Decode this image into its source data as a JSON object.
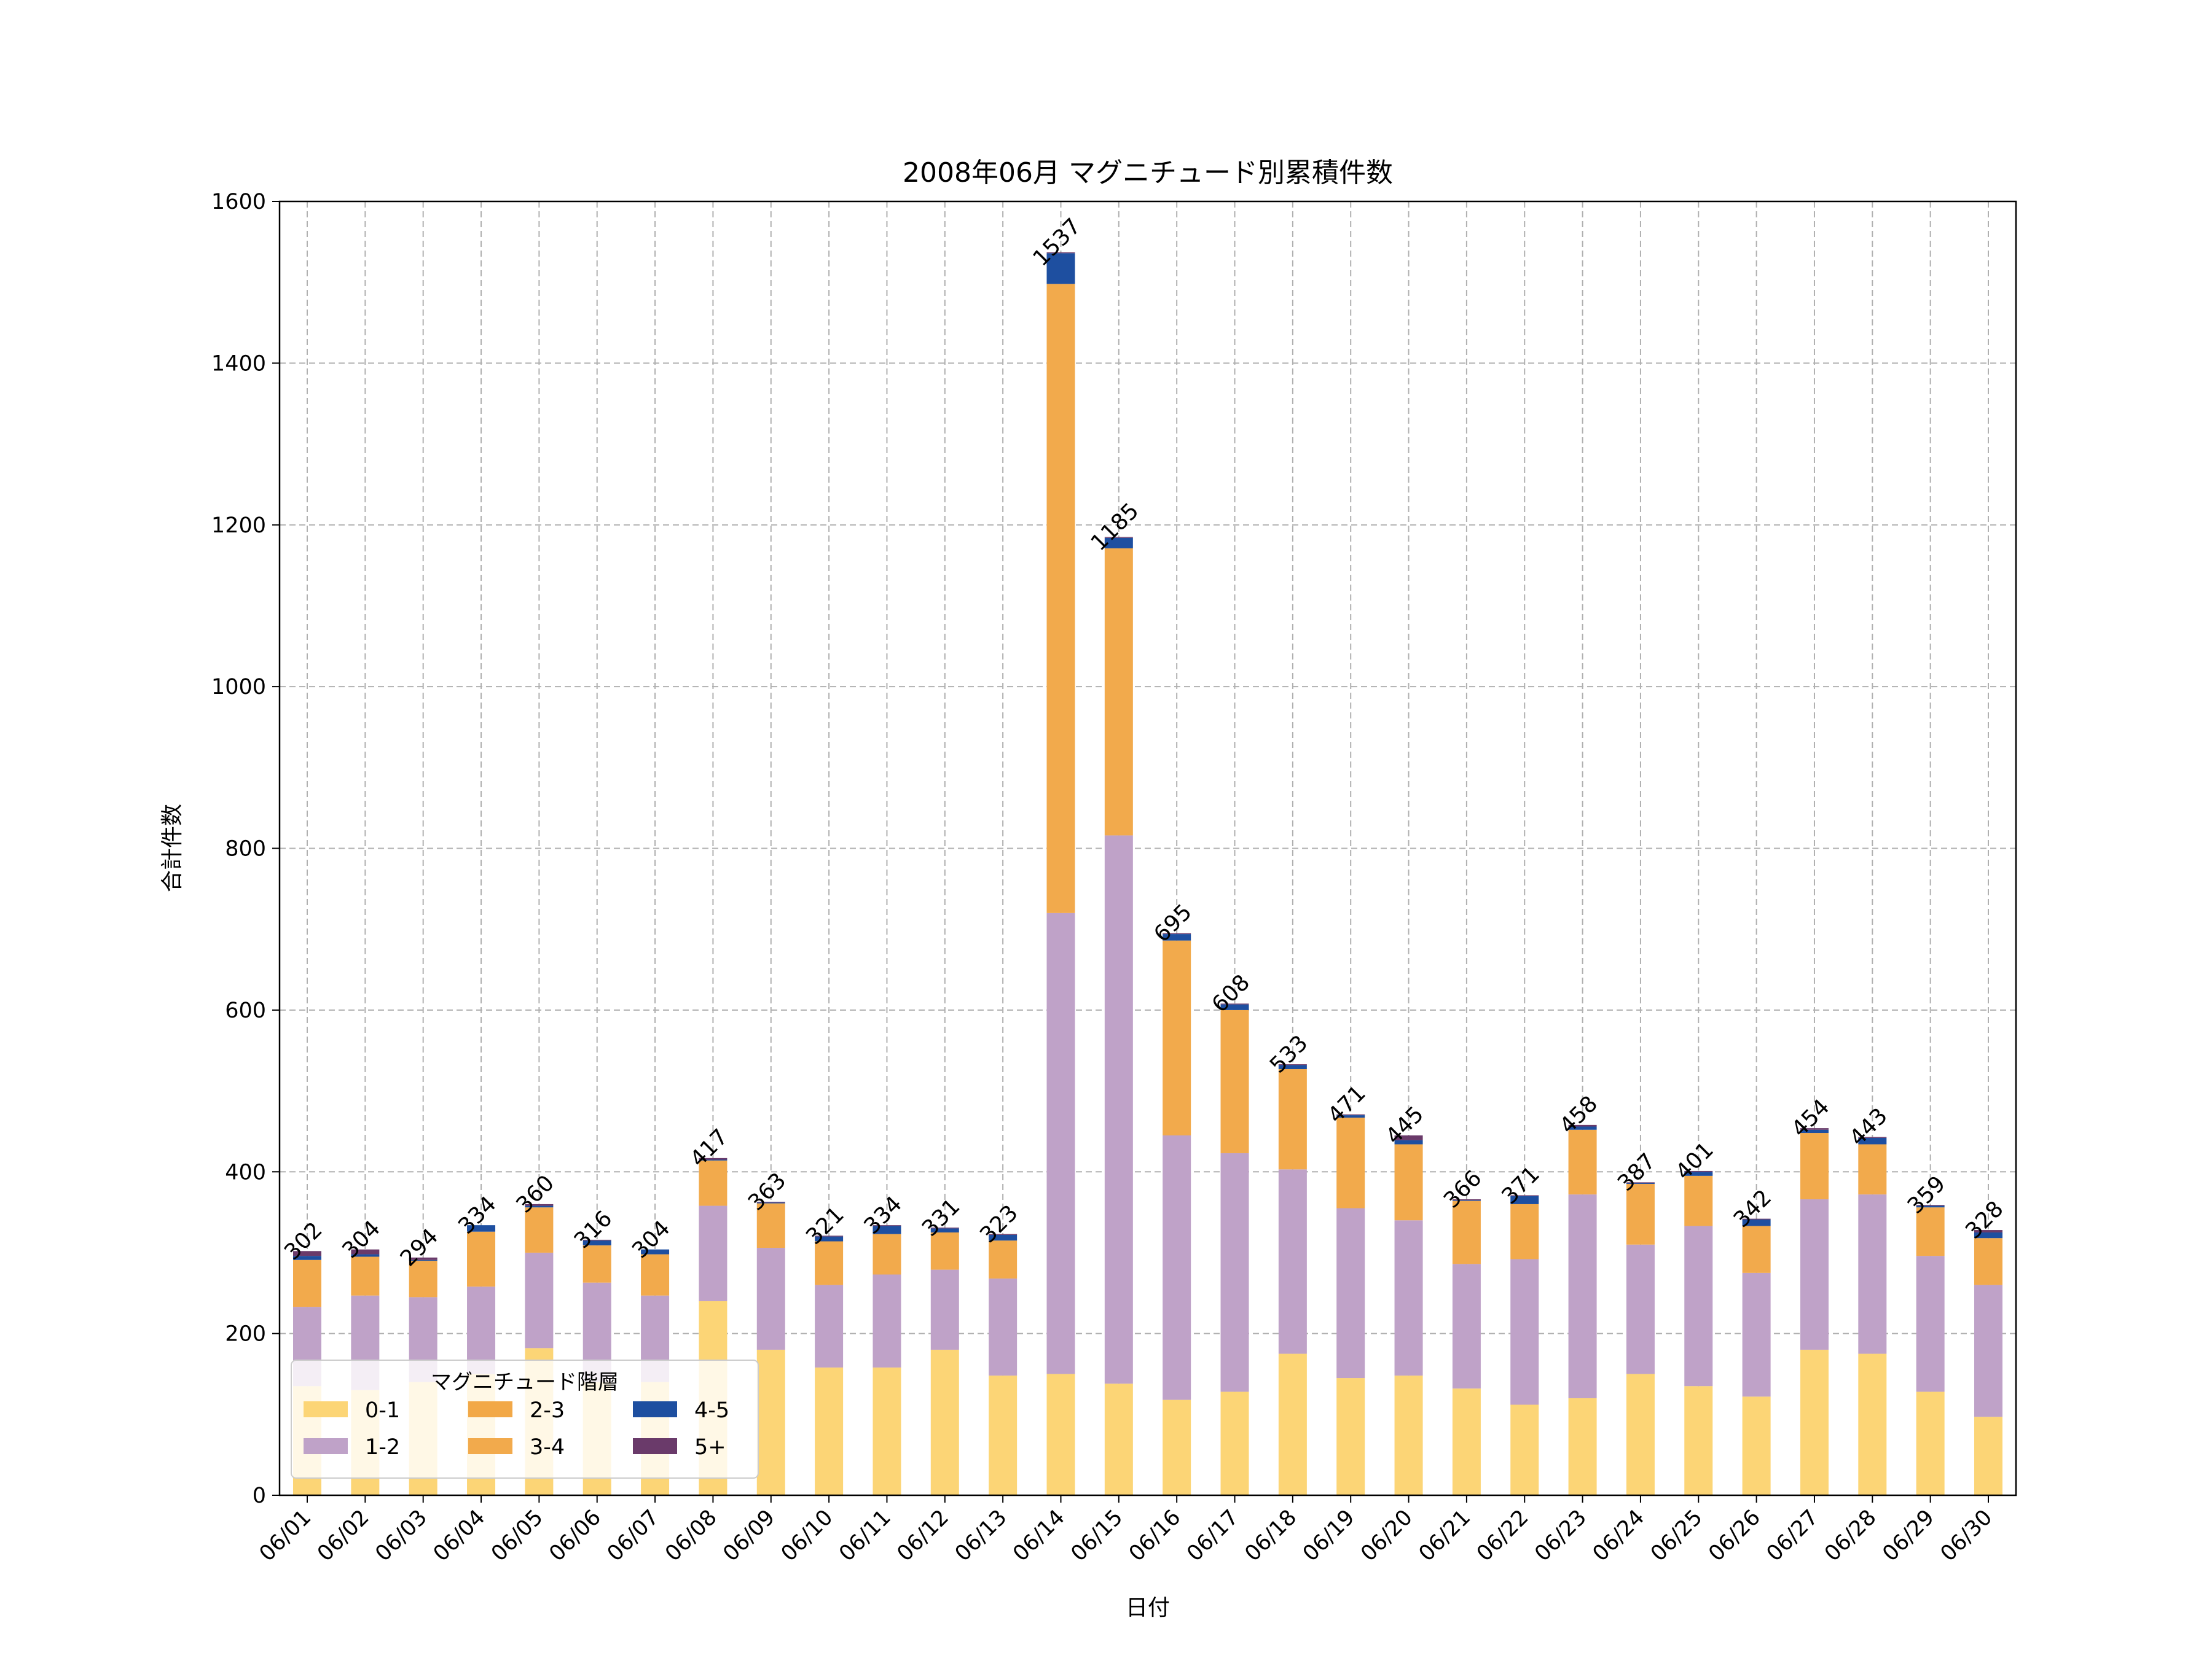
{
  "chart_data": {
    "type": "bar",
    "stacked": true,
    "title": "2008年06月 マグニチュード別累積件数",
    "xlabel": "日付",
    "ylabel": "合計件数",
    "ylim": [
      0,
      1600
    ],
    "yticks": [
      0,
      200,
      400,
      600,
      800,
      1000,
      1200,
      1400,
      1600
    ],
    "grid": true,
    "legend_title": "マグニチュード階層",
    "legend_placement": "lower-left",
    "categories": [
      "06/01",
      "06/02",
      "06/03",
      "06/04",
      "06/05",
      "06/06",
      "06/07",
      "06/08",
      "06/09",
      "06/10",
      "06/11",
      "06/12",
      "06/13",
      "06/14",
      "06/15",
      "06/16",
      "06/17",
      "06/18",
      "06/19",
      "06/20",
      "06/21",
      "06/22",
      "06/23",
      "06/24",
      "06/25",
      "06/26",
      "06/27",
      "06/28",
      "06/29",
      "06/30"
    ],
    "totals": [
      302,
      304,
      294,
      334,
      360,
      316,
      304,
      417,
      363,
      321,
      334,
      331,
      323,
      1537,
      1185,
      695,
      608,
      533,
      471,
      445,
      366,
      371,
      458,
      387,
      401,
      342,
      454,
      443,
      359,
      328
    ],
    "series": [
      {
        "name": "0-1",
        "color": "#FCD576",
        "values": [
          135,
          130,
          140,
          150,
          182,
          140,
          140,
          240,
          180,
          158,
          158,
          180,
          148,
          150,
          138,
          118,
          128,
          175,
          145,
          148,
          132,
          112,
          120,
          150,
          135,
          122,
          180,
          175,
          128,
          97
        ]
      },
      {
        "name": "1-2",
        "color": "#BFA2C8",
        "values": [
          98,
          117,
          105,
          108,
          118,
          123,
          107,
          118,
          126,
          102,
          115,
          99,
          120,
          570,
          678,
          327,
          295,
          228,
          210,
          192,
          154,
          180,
          252,
          160,
          198,
          153,
          186,
          197,
          168,
          163
        ]
      },
      {
        "name": "2-3",
        "color": "#F2A847",
        "values": [
          0,
          0,
          0,
          0,
          0,
          0,
          0,
          0,
          0,
          0,
          0,
          0,
          0,
          0,
          0,
          0,
          0,
          0,
          0,
          0,
          0,
          0,
          0,
          0,
          0,
          0,
          0,
          0,
          0,
          0
        ]
      },
      {
        "name": "3-4",
        "color": "#F2AA4C",
        "values": [
          58,
          48,
          45,
          68,
          56,
          46,
          51,
          56,
          55,
          54,
          50,
          46,
          47,
          778,
          355,
          241,
          177,
          124,
          112,
          94,
          78,
          68,
          80,
          75,
          62,
          58,
          82,
          62,
          60,
          58
        ]
      },
      {
        "name": "4-5",
        "color": "#1E4FA0",
        "values": [
          5,
          3,
          1,
          8,
          2,
          6,
          6,
          1,
          1,
          6,
          10,
          5,
          7,
          38,
          13,
          8,
          7,
          5,
          3,
          5,
          1,
          10,
          4,
          1,
          5,
          8,
          4,
          8,
          2,
          7
        ]
      },
      {
        "name": "5+",
        "color": "#6A3A6A",
        "values": [
          6,
          6,
          3,
          0,
          2,
          1,
          0,
          2,
          1,
          1,
          1,
          1,
          1,
          1,
          1,
          1,
          1,
          1,
          1,
          6,
          1,
          1,
          2,
          1,
          1,
          1,
          2,
          1,
          1,
          3
        ]
      }
    ]
  }
}
